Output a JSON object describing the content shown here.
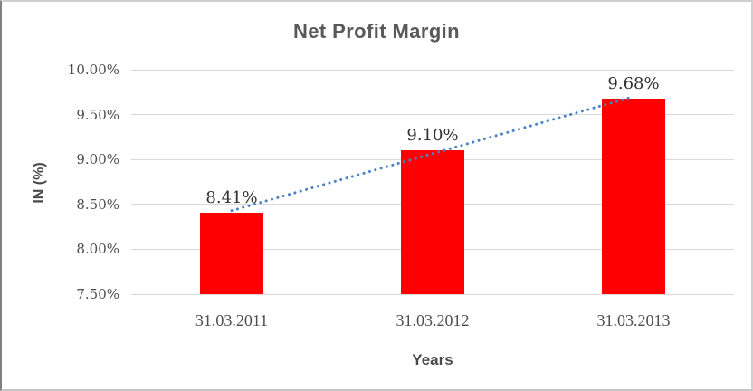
{
  "chart_data": {
    "type": "bar",
    "title": "Net Profit Margin",
    "xlabel": "Years",
    "ylabel": "IN (%)",
    "categories": [
      "31.03.2011",
      "31.03.2012",
      "31.03.2013"
    ],
    "values": [
      8.41,
      9.1,
      9.68
    ],
    "data_labels": [
      "8.41%",
      "9.10%",
      "9.68%"
    ],
    "ylim": [
      7.5,
      10.0
    ],
    "ytick_step": 0.5,
    "ytick_labels": [
      "7.50%",
      "8.00%",
      "8.50%",
      "9.00%",
      "9.50%",
      "10.00%"
    ],
    "grid": true,
    "legend": "none",
    "bar_color": "#ff0000",
    "gridline_color": "#d9d9d9",
    "trendline": {
      "type": "linear",
      "style": "dotted",
      "color": "#4a82c8",
      "start_value": 8.43,
      "end_value": 9.7
    }
  }
}
